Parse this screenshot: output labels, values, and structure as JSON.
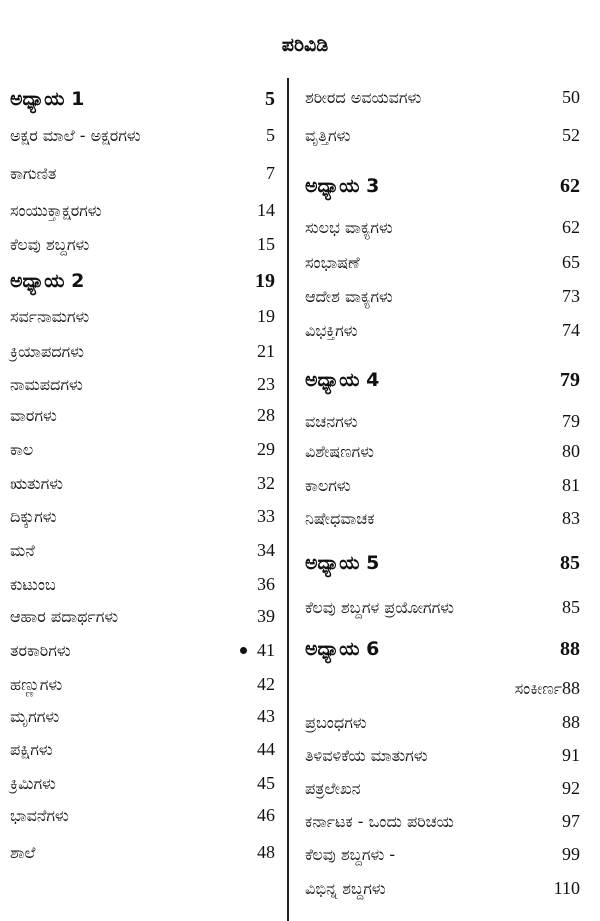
{
  "title": "ಪರಿವಿಡಿ",
  "left_column": [
    {
      "label": "ಅಧ್ಯಾಯ 1",
      "page": "5",
      "chapter": true
    },
    {
      "label": "ಅಕ್ಷರ ಮಾಲೆ - ಅಕ್ಷರಗಳು",
      "page": "5"
    },
    {
      "label": "ಕಾಗುಣಿತ",
      "page": "7"
    },
    {
      "label": "ಸಂಯುಕ್ತಾಕ್ಷರಗಳು",
      "page": "14"
    },
    {
      "label": "ಕೆಲವು ಶಬ್ದಗಳು",
      "page": "15"
    },
    {
      "label": "ಅಧ್ಯಾಯ 2",
      "page": "19",
      "chapter": true
    },
    {
      "label": "ಸರ್ವನಾಮಗಳು",
      "page": "19"
    },
    {
      "label": "ಕ್ರಿಯಾಪದಗಳು",
      "page": "21"
    },
    {
      "label": "ನಾಮಪದಗಳು",
      "page": "23"
    },
    {
      "label": "ವಾರಗಳು",
      "page": "28"
    },
    {
      "label": "ಕಾಲ",
      "page": "29"
    },
    {
      "label": "ಋತುಗಳು",
      "page": "32"
    },
    {
      "label": "ದಿಕ್ಕುಗಳು",
      "page": "33"
    },
    {
      "label": "ಮನೆ",
      "page": "34"
    },
    {
      "label": "ಕುಟುಂಬ",
      "page": "36"
    },
    {
      "label": "ಆಹಾರ ಪದಾರ್ಥಗಳು",
      "page": "39"
    },
    {
      "label": "ತರಕಾರಿಗಳು",
      "page": "41"
    },
    {
      "label": "ಹಣ್ಣುಗಳು",
      "page": "42"
    },
    {
      "label": "ಮೃಗಗಳು",
      "page": "43"
    },
    {
      "label": "ಪಕ್ಷಿಗಳು",
      "page": "44"
    },
    {
      "label": "ಕ್ರಿಮಿಗಳು",
      "page": "45"
    },
    {
      "label": "ಭಾವನೆಗಳು",
      "page": "46"
    },
    {
      "label": "ಶಾಲೆ",
      "page": "48"
    }
  ],
  "right_column": [
    {
      "label": "ಶರೀರದ ಅವಯವಗಳು",
      "page": "50"
    },
    {
      "label": "ವೃತ್ತಿಗಳು",
      "page": "52"
    },
    {
      "label": "ಅಧ್ಯಾಯ 3",
      "page": "62",
      "chapter": true
    },
    {
      "label": "ಸುಲಭ ವಾಕ್ಯಗಳು",
      "page": "62"
    },
    {
      "label": "ಸಂಭಾಷಣೆ",
      "page": "65"
    },
    {
      "label": "ಆದೇಶ ವಾಕ್ಯಗಳು",
      "page": "73"
    },
    {
      "label": "ವಿಭಕ್ತಿಗಳು",
      "page": "74"
    },
    {
      "label": "ಅಧ್ಯಾಯ 4",
      "page": "79",
      "chapter": true
    },
    {
      "label": "ವಚನಗಳು",
      "page": "79"
    },
    {
      "label": "ವಿಶೇಷಣಗಳು",
      "page": "80"
    },
    {
      "label": "ಕಾಲಗಳು",
      "page": "81"
    },
    {
      "label": "ನಿಷೇಧವಾಚಕ",
      "page": "83"
    },
    {
      "label": "ಅಧ್ಯಾಯ 5",
      "page": "85",
      "chapter": true
    },
    {
      "label": "ಕೆಲವು ಶಬ್ದಗಳ ಪ್ರಯೋಗಗಳು",
      "page": "85"
    },
    {
      "label": "ಅಧ್ಯಾಯ 6",
      "page": "88",
      "chapter": true
    },
    {
      "label": "ಸಂಕೀರ್ಣ",
      "page": "88",
      "indent": true
    },
    {
      "label": "ಪ್ರಬಂಧಗಳು",
      "page": "88"
    },
    {
      "label": "ತಿಳಿವಳಿಕೆಯ ಮಾತುಗಳು",
      "page": "91"
    },
    {
      "label": "ಪತ್ರಲೇಖನ",
      "page": "92"
    },
    {
      "label": "ಕರ್ನಾಟಕ - ಒಂದು ಪರಿಚಯ",
      "page": "97"
    },
    {
      "label": "ಕೆಲವು ಶಬ್ದಗಳು -",
      "page": "99"
    },
    {
      "label": "ವಿಭಿನ್ನ ಶಬ್ದಗಳು",
      "page": "110"
    }
  ]
}
